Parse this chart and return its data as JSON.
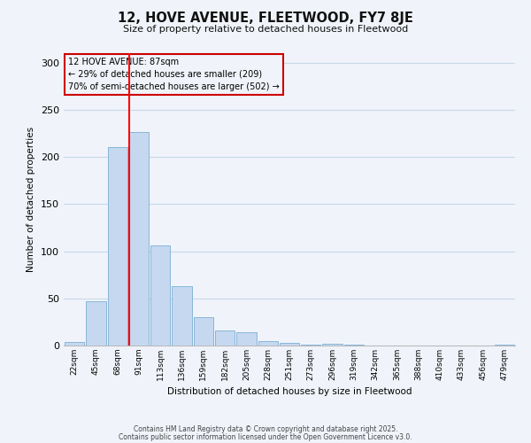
{
  "title": "12, HOVE AVENUE, FLEETWOOD, FY7 8JE",
  "subtitle": "Size of property relative to detached houses in Fleetwood",
  "xlabel": "Distribution of detached houses by size in Fleetwood",
  "ylabel": "Number of detached properties",
  "bar_labels": [
    "22sqm",
    "45sqm",
    "68sqm",
    "91sqm",
    "113sqm",
    "136sqm",
    "159sqm",
    "182sqm",
    "205sqm",
    "228sqm",
    "251sqm",
    "273sqm",
    "296sqm",
    "319sqm",
    "342sqm",
    "365sqm",
    "388sqm",
    "410sqm",
    "433sqm",
    "456sqm",
    "479sqm"
  ],
  "bar_values": [
    4,
    47,
    210,
    226,
    106,
    63,
    30,
    16,
    14,
    5,
    3,
    1,
    2,
    1,
    0,
    0,
    0,
    0,
    0,
    0,
    1
  ],
  "bar_color": "#c5d8f0",
  "bar_edge_color": "#7bafd4",
  "vline_bar_index": 3,
  "vline_color": "red",
  "ylim": [
    0,
    310
  ],
  "yticks": [
    0,
    50,
    100,
    150,
    200,
    250,
    300
  ],
  "annotation_title": "12 HOVE AVENUE: 87sqm",
  "annotation_line2": "← 29% of detached houses are smaller (209)",
  "annotation_line3": "70% of semi-detached houses are larger (502) →",
  "annotation_box_color": "#cc0000",
  "footnote1": "Contains HM Land Registry data © Crown copyright and database right 2025.",
  "footnote2": "Contains public sector information licensed under the Open Government Licence v3.0.",
  "bg_color": "#f0f4fa",
  "grid_color": "#c8d8e8"
}
